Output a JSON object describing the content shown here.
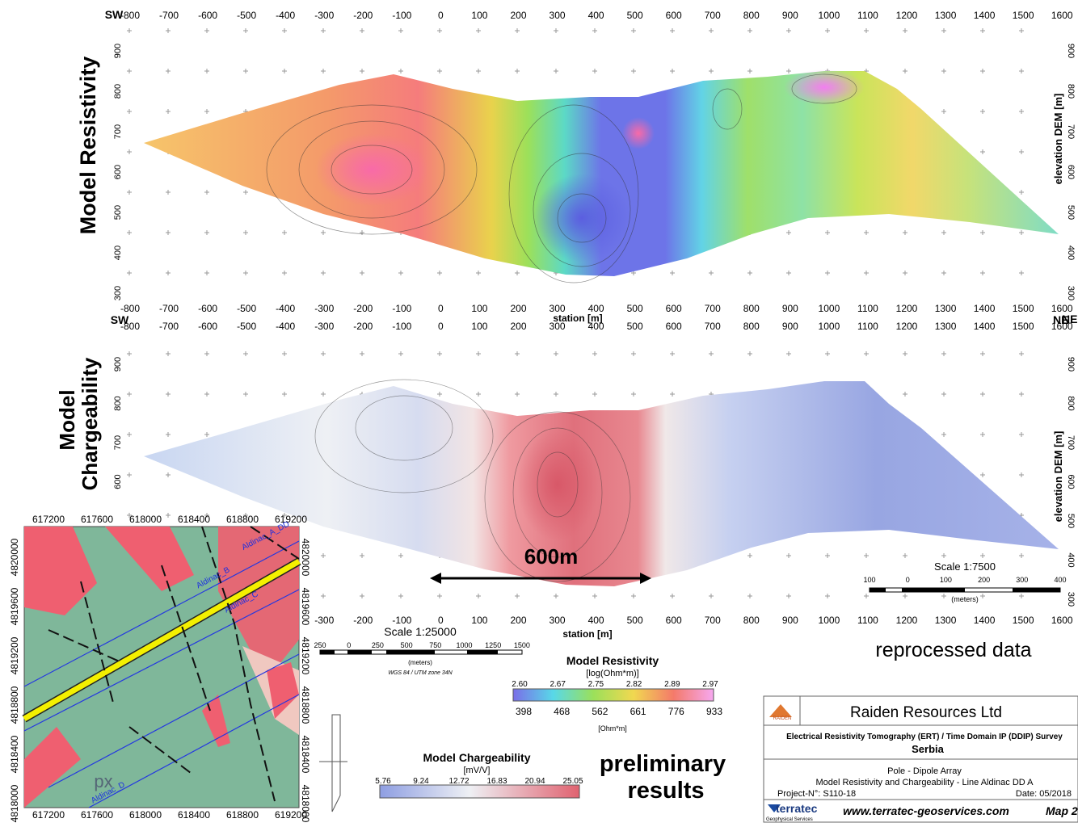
{
  "resistivity_panel": {
    "title": "Model Resistivity",
    "sw": "SW",
    "ne": "NE",
    "top_ticks": [
      "-800",
      "-700",
      "-600",
      "-500",
      "-400",
      "-300",
      "-200",
      "-100",
      "0",
      "100",
      "200",
      "300",
      "400",
      "500",
      "600",
      "700",
      "800",
      "900",
      "1000",
      "1100",
      "1200",
      "1300",
      "1400",
      "1500",
      "1600"
    ],
    "bottom_ticks": [
      "-800",
      "-700",
      "-600",
      "-500",
      "-400",
      "-300",
      "-200",
      "-100",
      "0",
      "100",
      "200",
      "300",
      "400",
      "500",
      "600",
      "700",
      "800",
      "900",
      "1000",
      "1100",
      "1200",
      "1300",
      "1400",
      "1500",
      "1600"
    ],
    "x_label": "station [m]",
    "left_ticks": [
      "900",
      "800",
      "700",
      "600",
      "500",
      "400",
      "300"
    ],
    "right_ticks": [
      "900",
      "800",
      "700",
      "600",
      "500",
      "400",
      "300"
    ],
    "y_label": "elevation DEM [m]"
  },
  "chargeability_panel": {
    "title_lines": [
      "Model",
      "Chargeability"
    ],
    "sw": "SW",
    "ne": "NE",
    "top_ticks": [
      "-800",
      "-700",
      "-600",
      "-500",
      "-400",
      "-300",
      "-200",
      "-100",
      "0",
      "100",
      "200",
      "300",
      "400",
      "500",
      "600",
      "700",
      "800",
      "900",
      "1000",
      "1100",
      "1200",
      "1300",
      "1400",
      "1500",
      "1600"
    ],
    "bottom_ticks": [
      "-300",
      "-200",
      "-100",
      "0",
      "100",
      "200",
      "300",
      "400",
      "500",
      "600",
      "700",
      "800",
      "900",
      "1000",
      "1100",
      "1200",
      "1300",
      "1400",
      "1500",
      "1600"
    ],
    "x_label": "station [m]",
    "left_ticks": [
      "900",
      "800",
      "700",
      "600"
    ],
    "right_ticks": [
      "900",
      "800",
      "700",
      "600",
      "500",
      "400",
      "300"
    ],
    "y_label": "elevation DEM [m]",
    "distance_label": "600m"
  },
  "section_scale": {
    "title": "Scale 1:7500",
    "ticks": [
      "100",
      "0",
      "100",
      "200",
      "300",
      "400"
    ],
    "unit": "(meters)"
  },
  "map_scale": {
    "title": "Scale 1:25000",
    "ticks": [
      "250",
      "0",
      "250",
      "500",
      "750",
      "1000",
      "1250",
      "1500"
    ],
    "unit": "(meters)",
    "projection": "WGS 84 / UTM zone 34N"
  },
  "inset_map": {
    "x_ticks": [
      "617200",
      "617600",
      "618000",
      "618400",
      "618800",
      "619200"
    ],
    "y_ticks": [
      "4820000",
      "4819600",
      "4819200",
      "4818800",
      "4818400",
      "4818000"
    ],
    "line_labels": [
      "Aldinac_A_DD",
      "Aldinac_B",
      "Aldinac_C",
      "Aldinac_D"
    ],
    "unit_label": "px"
  },
  "resistivity_legend": {
    "title": "Model Resistivity",
    "unit_log": "[log(Ohm*m)]",
    "log_ticks": [
      "2.60",
      "2.67",
      "2.75",
      "2.82",
      "2.89",
      "2.97"
    ],
    "ohm_ticks": [
      "398",
      "468",
      "562",
      "661",
      "776",
      "933"
    ],
    "unit": "[Ohm*m]"
  },
  "chargeability_legend": {
    "title": "Model Chargeability",
    "unit": "[mV/V]",
    "ticks": [
      "5.76",
      "9.24",
      "12.72",
      "16.83",
      "20.94",
      "25.05"
    ]
  },
  "status_labels": {
    "reprocessed": "reprocessed data",
    "preliminary_lines": [
      "preliminary",
      "results"
    ]
  },
  "title_block": {
    "logo": "RAIDEN",
    "company": "Raiden Resources Ltd",
    "survey": "Electrical Resistivity Tomography (ERT) / Time Domain IP (DDIP) Survey",
    "country": "Serbia",
    "array": "Pole - Dipole Array",
    "subject": "Model Resistivity and Chargeability - Line Aldinac DD A",
    "project": "Project-N°:  S110-18",
    "date": "Date: 05/2018",
    "contractor": "terratec",
    "contractor_sub": "Geophysical Services",
    "website": "www.terratec-geoservices.com",
    "map_number": "Map 2"
  }
}
